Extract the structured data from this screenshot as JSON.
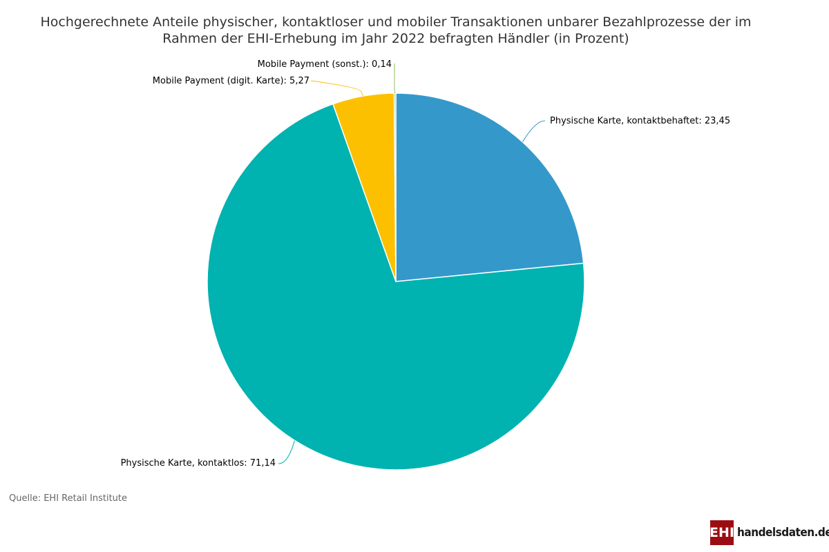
{
  "title": "Hochgerechnete Anteile physischer, kontaktloser und mobiler Transaktionen unbarer Bezahlprozesse der im Rahmen der EHI-Erhebung im Jahr 2022 befragten Händler (in Prozent)",
  "source": "Quelle: EHI Retail Institute",
  "logo": {
    "mark": "EHI",
    "text": "handelsdaten.de",
    "color": "#9b0d12"
  },
  "chart_data": {
    "type": "pie",
    "title": "Hochgerechnete Anteile physischer, kontaktloser und mobiler Transaktionen unbarer Bezahlprozesse der im Rahmen der EHI-Erhebung im Jahr 2022 befragten Händler (in Prozent)",
    "slices": [
      {
        "label": "Physische Karte, kontaktbehaftet",
        "value": 23.45,
        "value_text": "23,45",
        "color": "#3598cb"
      },
      {
        "label": "Physische Karte, kontaktlos",
        "value": 71.14,
        "value_text": "71,14",
        "color": "#00b2b0"
      },
      {
        "label": "Mobile Payment (digit. Karte)",
        "value": 5.27,
        "value_text": "5,27",
        "color": "#fdc000"
      },
      {
        "label": "Mobile Payment (sonst.)",
        "value": 0.14,
        "value_text": "0,14",
        "color": "#8fbc5a"
      }
    ]
  }
}
